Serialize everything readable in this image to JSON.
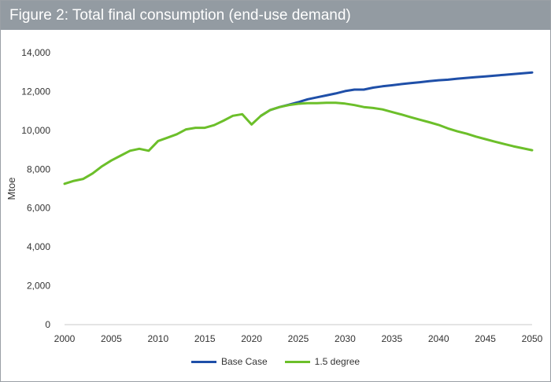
{
  "title": "Figure 2: Total final consumption (end-use demand)",
  "chart_data": {
    "type": "line",
    "title": "Figure 2: Total final consumption (end-use demand)",
    "xlabel": "",
    "ylabel": "Mtoe",
    "xlim": [
      2000,
      2050
    ],
    "ylim": [
      0,
      14000
    ],
    "x_ticks": [
      2000,
      2005,
      2010,
      2015,
      2020,
      2025,
      2030,
      2035,
      2040,
      2045,
      2050
    ],
    "y_ticks": [
      0,
      2000,
      4000,
      6000,
      8000,
      10000,
      12000,
      14000
    ],
    "x_tick_labels": [
      "2000",
      "2005",
      "2010",
      "2015",
      "2020",
      "2025",
      "2030",
      "2035",
      "2040",
      "2045",
      "2050"
    ],
    "y_tick_labels": [
      "0",
      "2,000",
      "4,000",
      "6,000",
      "8,000",
      "10,000",
      "12,000",
      "14,000"
    ],
    "grid": false,
    "legend_position": "bottom",
    "series": [
      {
        "name": "Base Case",
        "color": "#1f4fa8",
        "x": [
          2021,
          2022,
          2023,
          2024,
          2025,
          2026,
          2027,
          2028,
          2029,
          2030,
          2031,
          2032,
          2033,
          2034,
          2035,
          2036,
          2037,
          2038,
          2039,
          2040,
          2041,
          2042,
          2043,
          2044,
          2045,
          2046,
          2047,
          2048,
          2049,
          2050
        ],
        "y": [
          10750,
          11050,
          11200,
          11320,
          11450,
          11600,
          11700,
          11800,
          11900,
          12020,
          12100,
          12100,
          12200,
          12270,
          12320,
          12380,
          12430,
          12480,
          12530,
          12580,
          12610,
          12660,
          12700,
          12740,
          12780,
          12820,
          12860,
          12900,
          12940,
          12980
        ]
      },
      {
        "name": "1.5 degree",
        "color": "#6cbf2a",
        "x": [
          2000,
          2001,
          2002,
          2003,
          2004,
          2005,
          2006,
          2007,
          2008,
          2009,
          2010,
          2011,
          2012,
          2013,
          2014,
          2015,
          2016,
          2017,
          2018,
          2019,
          2020,
          2021,
          2022,
          2023,
          2024,
          2025,
          2026,
          2027,
          2028,
          2029,
          2030,
          2031,
          2032,
          2033,
          2034,
          2035,
          2036,
          2037,
          2038,
          2039,
          2040,
          2041,
          2042,
          2043,
          2044,
          2045,
          2046,
          2047,
          2048,
          2049,
          2050
        ],
        "y": [
          7250,
          7400,
          7500,
          7780,
          8150,
          8450,
          8700,
          8950,
          9050,
          8950,
          9450,
          9620,
          9800,
          10050,
          10130,
          10130,
          10270,
          10500,
          10750,
          10830,
          10300,
          10750,
          11050,
          11200,
          11300,
          11370,
          11400,
          11400,
          11420,
          11420,
          11380,
          11300,
          11200,
          11150,
          11080,
          10950,
          10820,
          10680,
          10550,
          10420,
          10280,
          10100,
          9950,
          9830,
          9680,
          9550,
          9420,
          9300,
          9180,
          9080,
          8980
        ]
      }
    ]
  }
}
